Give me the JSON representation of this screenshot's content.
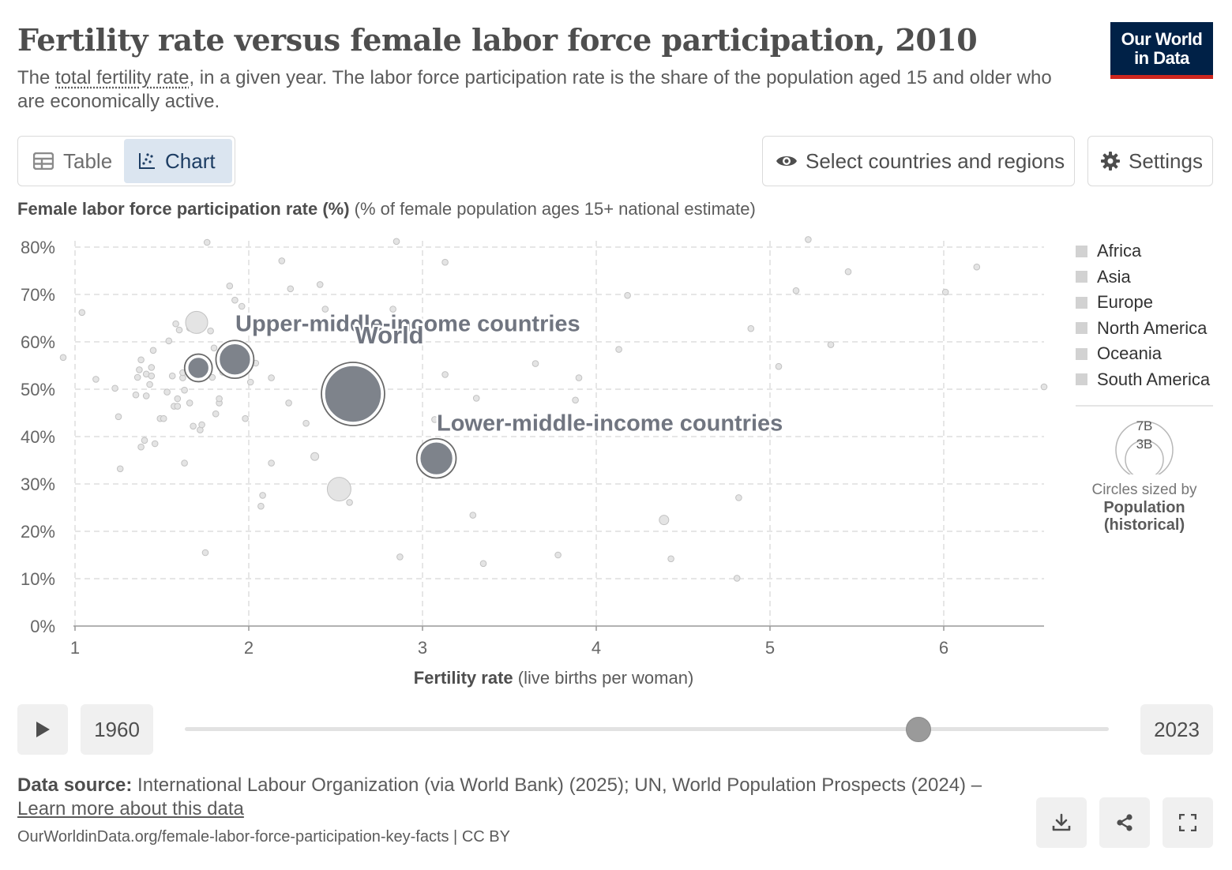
{
  "header": {
    "title": "Fertility rate versus female labor force participation, 2010",
    "subtitle_pre": "The ",
    "subtitle_link": "total fertility rate",
    "subtitle_post": ", in a given year. The labor force participation rate is the share of the population aged 15 and older who are economically active.",
    "logo_line1": "Our World",
    "logo_line2": "in Data"
  },
  "toolbar": {
    "table_label": "Table",
    "chart_label": "Chart",
    "select_label": "Select countries and regions",
    "settings_label": "Settings"
  },
  "chart_data": {
    "type": "scatter",
    "ylabel_bold": "Female labor force participation rate (%)",
    "ylabel_rest": " (% of female population ages 15+ national estimate)",
    "xlabel_bold": "Fertility rate",
    "xlabel_rest": " (live births per woman)",
    "xlim": [
      1,
      6.58
    ],
    "ylim": [
      0,
      80
    ],
    "xticks": [
      1,
      2,
      3,
      4,
      5,
      6
    ],
    "yticks": [
      0,
      10,
      20,
      30,
      40,
      50,
      60,
      70,
      80
    ],
    "ytick_suffix": "%",
    "grid": true,
    "legend": {
      "position": "right",
      "items": [
        "Africa",
        "Asia",
        "Europe",
        "North America",
        "Oceania",
        "South America"
      ],
      "color": "#d2d2d2"
    },
    "size_legend": {
      "large": "7B",
      "small": "3B",
      "caption": "Circles sized by",
      "variable_line1": "Population",
      "variable_line2": "(historical)"
    },
    "highlighted": [
      {
        "name": "Upper-middle-income countries",
        "x": 1.92,
        "y": 56.3,
        "population_b": 2.5,
        "labeled": true
      },
      {
        "name": "World",
        "x": 2.6,
        "y": 49.0,
        "population_b": 6.98,
        "labeled": true
      },
      {
        "name": "Lower-middle-income countries",
        "x": 3.08,
        "y": 35.4,
        "population_b": 2.7,
        "labeled": true
      },
      {
        "name": "",
        "x": 1.71,
        "y": 54.5,
        "population_b": 1.33,
        "labeled": false
      }
    ],
    "points": [
      {
        "x": 1.04,
        "y": 66.2
      },
      {
        "x": 0.93,
        "y": 56.7
      },
      {
        "x": 1.12,
        "y": 52.1
      },
      {
        "x": 1.23,
        "y": 50.2
      },
      {
        "x": 1.25,
        "y": 44.2
      },
      {
        "x": 1.26,
        "y": 33.2
      },
      {
        "x": 1.35,
        "y": 48.8
      },
      {
        "x": 1.36,
        "y": 52.5
      },
      {
        "x": 1.37,
        "y": 54.1
      },
      {
        "x": 1.38,
        "y": 56.2
      },
      {
        "x": 1.38,
        "y": 37.8
      },
      {
        "x": 1.4,
        "y": 39.2
      },
      {
        "x": 1.41,
        "y": 48.6
      },
      {
        "x": 1.41,
        "y": 53.2
      },
      {
        "x": 1.43,
        "y": 51.0
      },
      {
        "x": 1.44,
        "y": 52.8
      },
      {
        "x": 1.44,
        "y": 54.6
      },
      {
        "x": 1.45,
        "y": 58.2
      },
      {
        "x": 1.46,
        "y": 38.5
      },
      {
        "x": 1.49,
        "y": 43.8
      },
      {
        "x": 1.51,
        "y": 43.8
      },
      {
        "x": 1.53,
        "y": 49.4
      },
      {
        "x": 1.54,
        "y": 60.2
      },
      {
        "x": 1.56,
        "y": 52.8
      },
      {
        "x": 1.57,
        "y": 46.4
      },
      {
        "x": 1.58,
        "y": 63.8
      },
      {
        "x": 1.59,
        "y": 48.0
      },
      {
        "x": 1.59,
        "y": 46.4
      },
      {
        "x": 1.6,
        "y": 62.5
      },
      {
        "x": 1.62,
        "y": 52.4
      },
      {
        "x": 1.62,
        "y": 53.5
      },
      {
        "x": 1.63,
        "y": 49.8
      },
      {
        "x": 1.63,
        "y": 34.4
      },
      {
        "x": 1.66,
        "y": 62.9
      },
      {
        "x": 1.66,
        "y": 47.1
      },
      {
        "x": 1.68,
        "y": 42.2
      },
      {
        "x": 1.7,
        "y": 64.1,
        "r": 14
      },
      {
        "x": 1.72,
        "y": 41.4
      },
      {
        "x": 1.73,
        "y": 42.5
      },
      {
        "x": 1.75,
        "y": 15.5
      },
      {
        "x": 1.76,
        "y": 81.0
      },
      {
        "x": 1.78,
        "y": 62.3
      },
      {
        "x": 1.79,
        "y": 52.5
      },
      {
        "x": 1.8,
        "y": 58.7
      },
      {
        "x": 1.81,
        "y": 44.8
      },
      {
        "x": 1.83,
        "y": 47.1
      },
      {
        "x": 1.83,
        "y": 48.0
      },
      {
        "x": 1.85,
        "y": 53.6
      },
      {
        "x": 1.89,
        "y": 71.8
      },
      {
        "x": 1.92,
        "y": 68.8
      },
      {
        "x": 1.96,
        "y": 67.5
      },
      {
        "x": 1.98,
        "y": 43.8
      },
      {
        "x": 2.01,
        "y": 51.5
      },
      {
        "x": 2.04,
        "y": 55.5
      },
      {
        "x": 2.07,
        "y": 25.3
      },
      {
        "x": 2.08,
        "y": 27.6
      },
      {
        "x": 2.13,
        "y": 34.4
      },
      {
        "x": 2.13,
        "y": 52.4
      },
      {
        "x": 2.19,
        "y": 77.1
      },
      {
        "x": 2.23,
        "y": 47.1
      },
      {
        "x": 2.24,
        "y": 71.2
      },
      {
        "x": 2.25,
        "y": 64.1
      },
      {
        "x": 2.33,
        "y": 42.8
      },
      {
        "x": 2.38,
        "y": 35.8,
        "r": 5
      },
      {
        "x": 2.41,
        "y": 72.1
      },
      {
        "x": 2.44,
        "y": 66.9
      },
      {
        "x": 2.46,
        "y": 52.3
      },
      {
        "x": 2.55,
        "y": 54.5
      },
      {
        "x": 2.52,
        "y": 28.9,
        "r": 15
      },
      {
        "x": 2.58,
        "y": 26.1
      },
      {
        "x": 2.83,
        "y": 66.9
      },
      {
        "x": 2.85,
        "y": 81.2
      },
      {
        "x": 2.87,
        "y": 14.6
      },
      {
        "x": 3.13,
        "y": 76.8
      },
      {
        "x": 3.13,
        "y": 53.1
      },
      {
        "x": 3.07,
        "y": 43.6
      },
      {
        "x": 3.29,
        "y": 23.4
      },
      {
        "x": 3.31,
        "y": 48.1
      },
      {
        "x": 3.35,
        "y": 13.2
      },
      {
        "x": 3.65,
        "y": 55.4
      },
      {
        "x": 3.78,
        "y": 15.0
      },
      {
        "x": 3.88,
        "y": 47.7
      },
      {
        "x": 3.9,
        "y": 52.4
      },
      {
        "x": 4.13,
        "y": 58.4
      },
      {
        "x": 4.18,
        "y": 69.8
      },
      {
        "x": 4.39,
        "y": 22.4,
        "r": 6
      },
      {
        "x": 4.43,
        "y": 14.2
      },
      {
        "x": 4.81,
        "y": 10.1
      },
      {
        "x": 4.82,
        "y": 27.1
      },
      {
        "x": 4.89,
        "y": 62.8
      },
      {
        "x": 5.05,
        "y": 54.8
      },
      {
        "x": 5.15,
        "y": 70.8
      },
      {
        "x": 5.22,
        "y": 81.6
      },
      {
        "x": 5.35,
        "y": 59.4
      },
      {
        "x": 5.45,
        "y": 74.8
      },
      {
        "x": 6.01,
        "y": 70.5
      },
      {
        "x": 6.19,
        "y": 75.8
      },
      {
        "x": 6.58,
        "y": 50.5
      }
    ]
  },
  "timeline": {
    "start_year": "1960",
    "end_year": "2023",
    "current_year": 2010
  },
  "footer": {
    "source_label": "Data source:",
    "source_text": " International Labour Organization (via World Bank) (2025); UN, World Population Prospects (2024) – ",
    "learn_more": "Learn more about this data",
    "url": "OurWorldinData.org/female-labor-force-participation-key-facts | CC BY"
  }
}
